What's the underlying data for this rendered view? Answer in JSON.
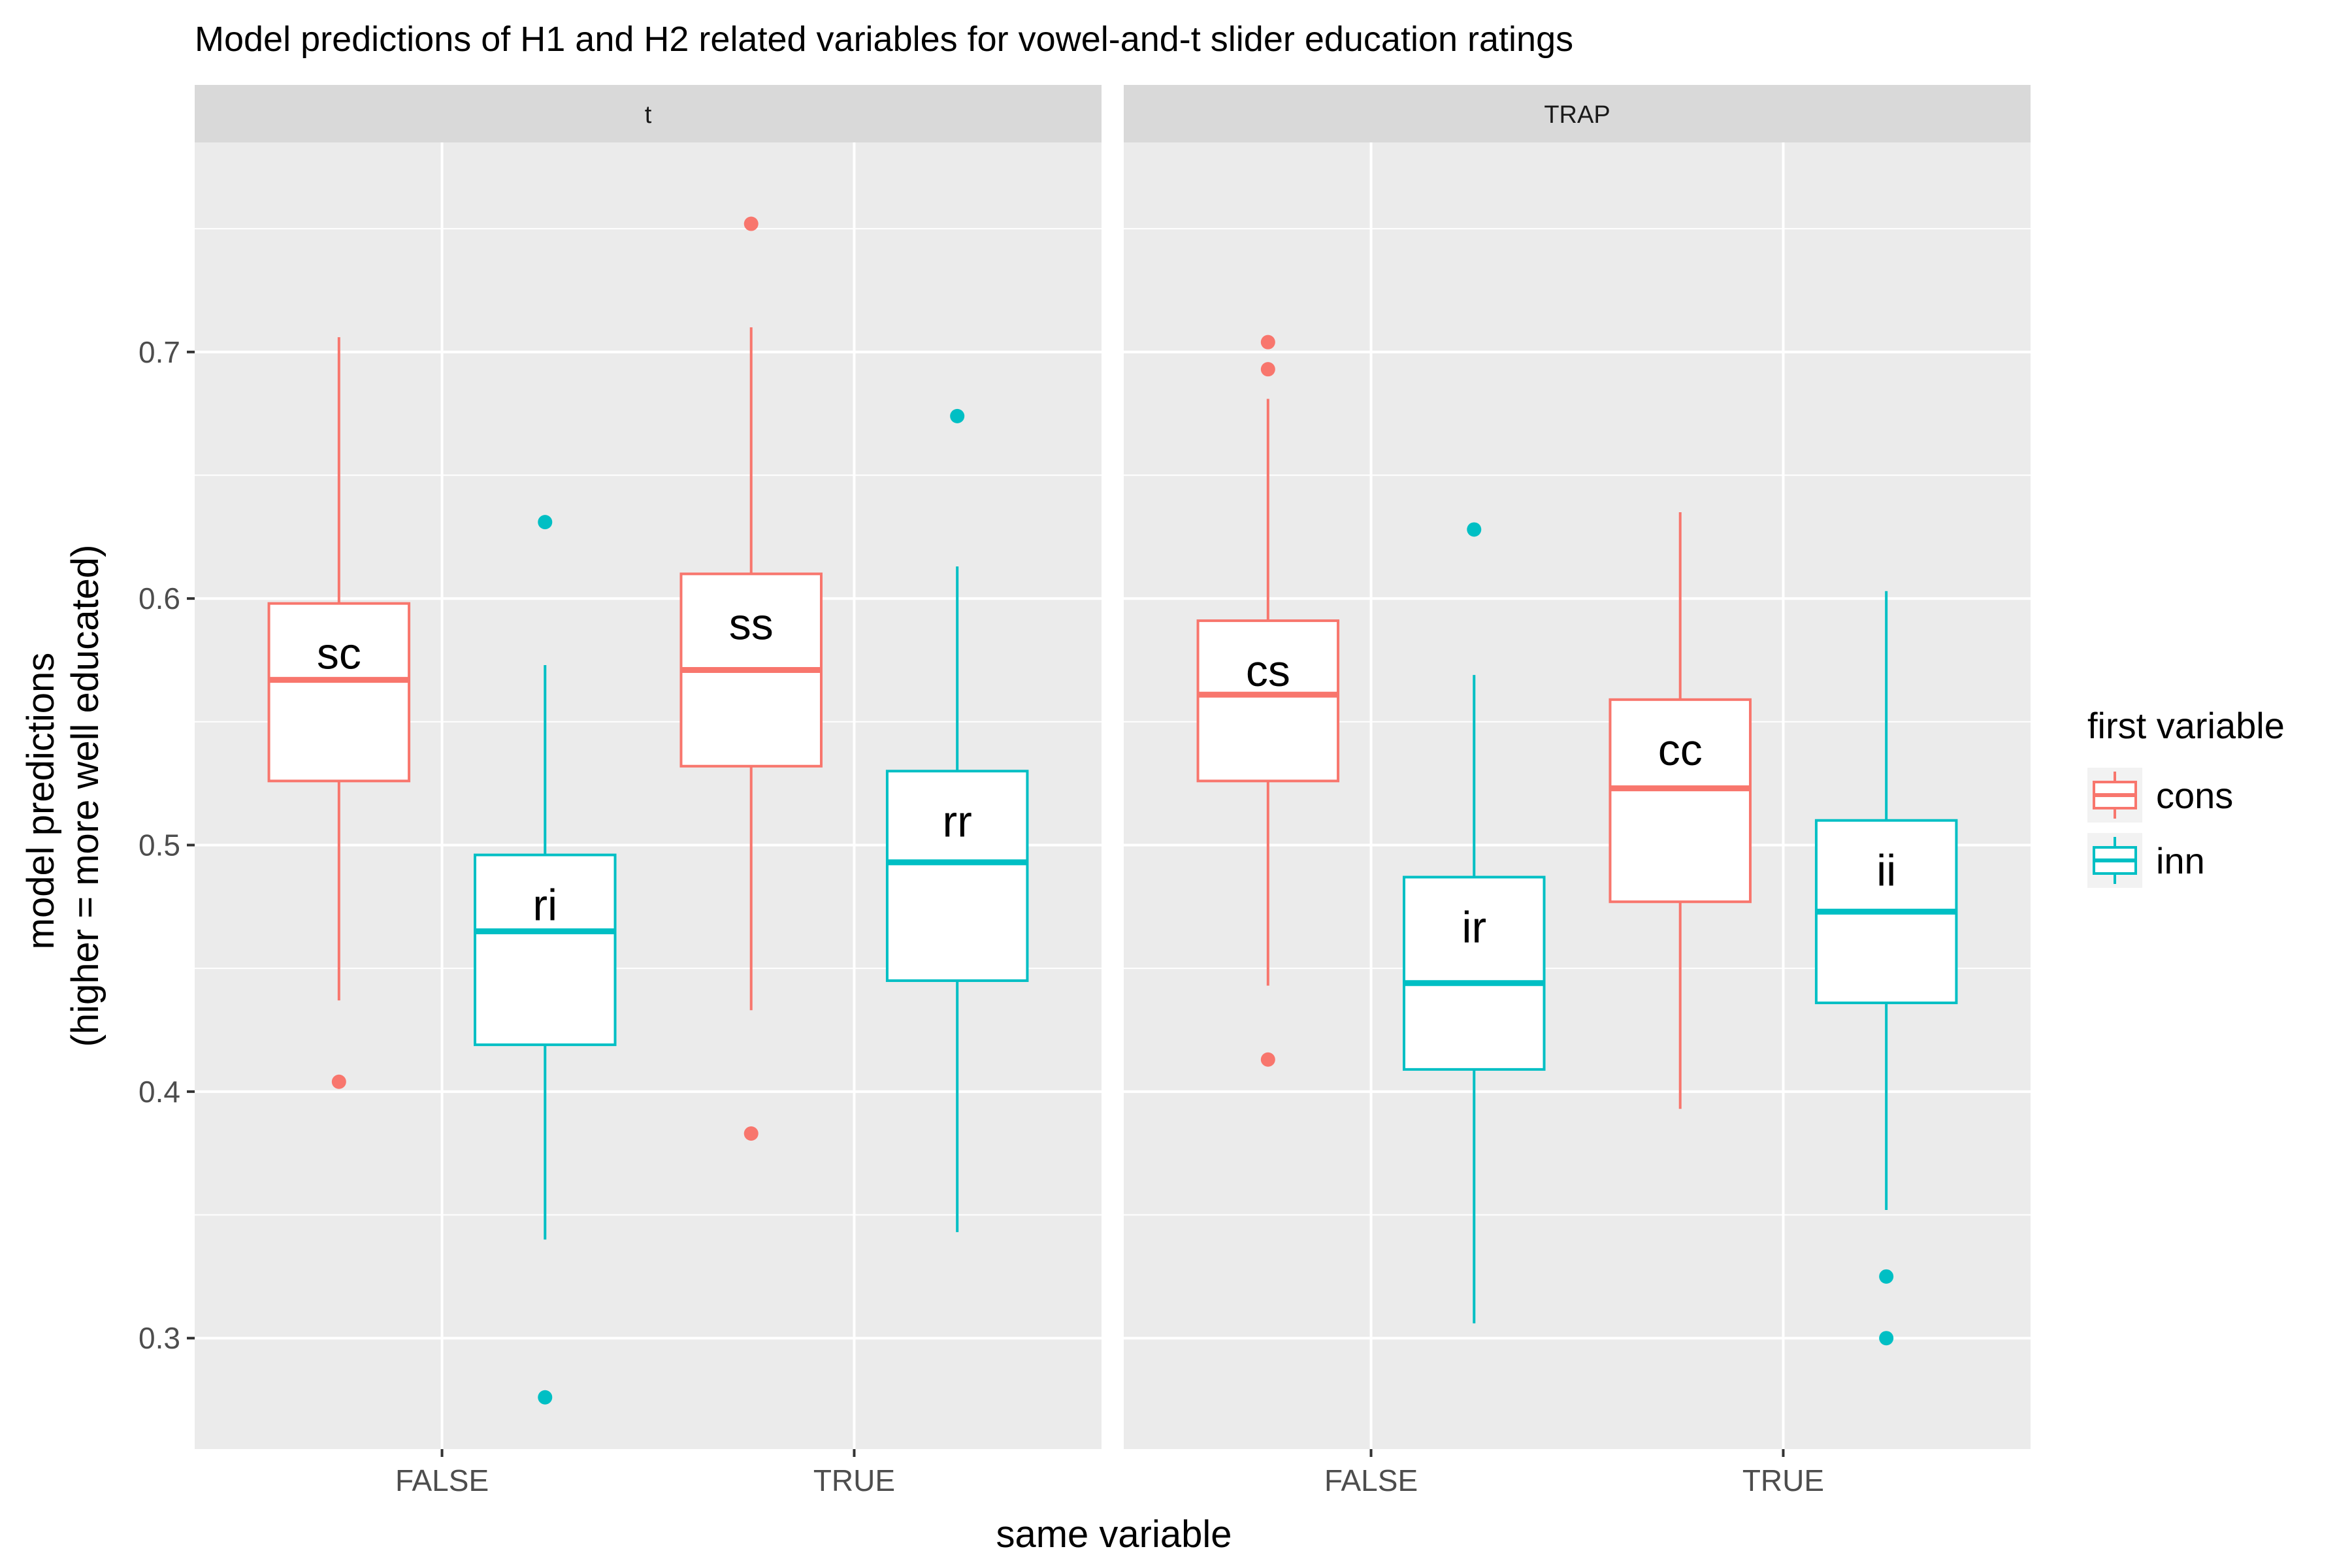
{
  "chart_data": {
    "type": "boxplot",
    "title": "Model predictions of H1 and H2 related variables for vowel-and-t slider education ratings",
    "xlabel": "same variable",
    "ylabel": [
      "model predictions",
      "(higher = more well educated)"
    ],
    "ylim": [
      0.255,
      0.785
    ],
    "yticks": [
      0.3,
      0.4,
      0.5,
      0.6,
      0.7
    ],
    "ytick_labels": [
      "0.3",
      "0.4",
      "0.5",
      "0.6",
      "0.7"
    ],
    "categories": [
      "FALSE",
      "TRUE"
    ],
    "grid": true,
    "legend": {
      "title": "first variable",
      "placement": "right",
      "entries": [
        {
          "name": "cons",
          "color": "#F8766D"
        },
        {
          "name": "inn",
          "color": "#00BFC4"
        }
      ]
    },
    "panels": [
      {
        "strip": "t",
        "boxes": [
          {
            "category": "FALSE",
            "group": "cons",
            "label": "sc",
            "whisker_low": 0.437,
            "q1": 0.526,
            "median": 0.567,
            "q3": 0.598,
            "whisker_high": 0.706,
            "outliers": [
              0.404
            ]
          },
          {
            "category": "FALSE",
            "group": "inn",
            "label": "ri",
            "whisker_low": 0.34,
            "q1": 0.419,
            "median": 0.465,
            "q3": 0.496,
            "whisker_high": 0.573,
            "outliers": [
              0.631,
              0.276
            ]
          },
          {
            "category": "TRUE",
            "group": "cons",
            "label": "ss",
            "whisker_low": 0.433,
            "q1": 0.532,
            "median": 0.571,
            "q3": 0.61,
            "whisker_high": 0.71,
            "outliers": [
              0.752,
              0.383
            ]
          },
          {
            "category": "TRUE",
            "group": "inn",
            "label": "rr",
            "whisker_low": 0.343,
            "q1": 0.445,
            "median": 0.493,
            "q3": 0.53,
            "whisker_high": 0.613,
            "outliers": [
              0.674
            ]
          }
        ]
      },
      {
        "strip": "TRAP",
        "boxes": [
          {
            "category": "FALSE",
            "group": "cons",
            "label": "cs",
            "whisker_low": 0.443,
            "q1": 0.526,
            "median": 0.561,
            "q3": 0.591,
            "whisker_high": 0.681,
            "outliers": [
              0.704,
              0.693,
              0.413
            ]
          },
          {
            "category": "FALSE",
            "group": "inn",
            "label": "ir",
            "whisker_low": 0.306,
            "q1": 0.409,
            "median": 0.444,
            "q3": 0.487,
            "whisker_high": 0.569,
            "outliers": [
              0.628
            ]
          },
          {
            "category": "TRUE",
            "group": "cons",
            "label": "cc",
            "whisker_low": 0.393,
            "q1": 0.477,
            "median": 0.523,
            "q3": 0.559,
            "whisker_high": 0.635,
            "outliers": []
          },
          {
            "category": "TRUE",
            "group": "inn",
            "label": "ii",
            "whisker_low": 0.352,
            "q1": 0.436,
            "median": 0.473,
            "q3": 0.51,
            "whisker_high": 0.603,
            "outliers": [
              0.325,
              0.3
            ]
          }
        ]
      }
    ]
  }
}
